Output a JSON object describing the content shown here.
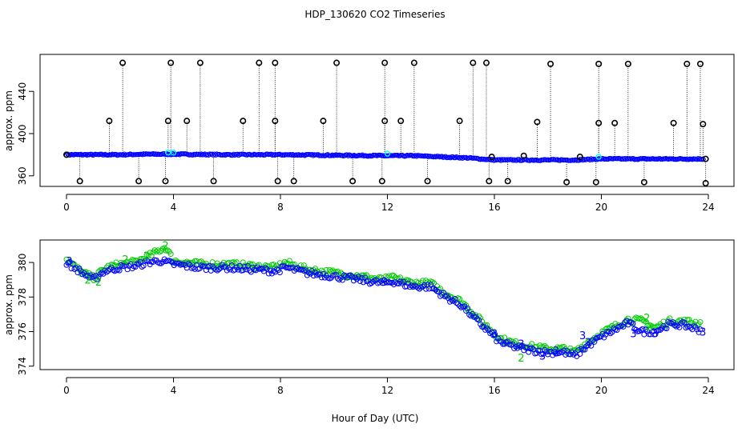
{
  "title": "HDP_130620  CO2 Timeseries",
  "chart_data": [
    {
      "type": "scatter",
      "panel": "top",
      "ylabel": "approx. ppm",
      "xlim": [
        0,
        24
      ],
      "ylim": [
        350,
        475
      ],
      "x_ticks": [
        "0",
        "4",
        "8",
        "12",
        "16",
        "20",
        "24"
      ],
      "y_ticks": [
        "360",
        "400",
        "440"
      ],
      "grid": false,
      "colors": {
        "flagged": "#000000",
        "baseline": "#0000ff",
        "spike": "#00ffff"
      },
      "baseline_series": [
        {
          "x": 0,
          "y": 380
        },
        {
          "x": 1,
          "y": 380
        },
        {
          "x": 2,
          "y": 380
        },
        {
          "x": 3,
          "y": 380.5
        },
        {
          "x": 4,
          "y": 380.5
        },
        {
          "x": 6,
          "y": 380
        },
        {
          "x": 8,
          "y": 380
        },
        {
          "x": 10,
          "y": 379.5
        },
        {
          "x": 12,
          "y": 379
        },
        {
          "x": 13,
          "y": 379
        },
        {
          "x": 14,
          "y": 378
        },
        {
          "x": 15,
          "y": 377
        },
        {
          "x": 16,
          "y": 375
        },
        {
          "x": 17,
          "y": 375
        },
        {
          "x": 18,
          "y": 375
        },
        {
          "x": 19,
          "y": 375
        },
        {
          "x": 20,
          "y": 376
        },
        {
          "x": 21,
          "y": 376
        },
        {
          "x": 22,
          "y": 376
        },
        {
          "x": 23,
          "y": 376
        },
        {
          "x": 23.8,
          "y": 376
        }
      ],
      "flagged_points": [
        {
          "x": 0.0,
          "y": 380
        },
        {
          "x": 0.5,
          "y": 355
        },
        {
          "x": 1.6,
          "y": 412
        },
        {
          "x": 2.1,
          "y": 467
        },
        {
          "x": 2.7,
          "y": 355
        },
        {
          "x": 3.7,
          "y": 355
        },
        {
          "x": 3.8,
          "y": 412
        },
        {
          "x": 3.9,
          "y": 467
        },
        {
          "x": 4.5,
          "y": 412
        },
        {
          "x": 5.0,
          "y": 467
        },
        {
          "x": 5.5,
          "y": 355
        },
        {
          "x": 6.6,
          "y": 412
        },
        {
          "x": 7.2,
          "y": 467
        },
        {
          "x": 7.8,
          "y": 467
        },
        {
          "x": 7.8,
          "y": 412
        },
        {
          "x": 7.9,
          "y": 355
        },
        {
          "x": 8.5,
          "y": 355
        },
        {
          "x": 9.6,
          "y": 412
        },
        {
          "x": 10.1,
          "y": 467
        },
        {
          "x": 10.7,
          "y": 355
        },
        {
          "x": 11.8,
          "y": 355
        },
        {
          "x": 11.9,
          "y": 412
        },
        {
          "x": 11.9,
          "y": 467
        },
        {
          "x": 12.5,
          "y": 412
        },
        {
          "x": 13.0,
          "y": 467
        },
        {
          "x": 13.5,
          "y": 355
        },
        {
          "x": 14.7,
          "y": 412
        },
        {
          "x": 15.2,
          "y": 467
        },
        {
          "x": 15.7,
          "y": 467
        },
        {
          "x": 15.8,
          "y": 355
        },
        {
          "x": 15.9,
          "y": 378
        },
        {
          "x": 16.5,
          "y": 355
        },
        {
          "x": 17.1,
          "y": 379
        },
        {
          "x": 17.6,
          "y": 411
        },
        {
          "x": 18.1,
          "y": 466
        },
        {
          "x": 18.7,
          "y": 354
        },
        {
          "x": 19.2,
          "y": 378
        },
        {
          "x": 19.8,
          "y": 354
        },
        {
          "x": 19.9,
          "y": 410
        },
        {
          "x": 19.9,
          "y": 466
        },
        {
          "x": 20.5,
          "y": 410
        },
        {
          "x": 21.0,
          "y": 466
        },
        {
          "x": 21.6,
          "y": 354
        },
        {
          "x": 22.7,
          "y": 410
        },
        {
          "x": 23.2,
          "y": 466
        },
        {
          "x": 23.7,
          "y": 466
        },
        {
          "x": 23.8,
          "y": 409
        },
        {
          "x": 23.9,
          "y": 353
        },
        {
          "x": 23.9,
          "y": 376
        }
      ],
      "spike_points": [
        {
          "x": 3.8,
          "y": 382
        },
        {
          "x": 4.0,
          "y": 382
        },
        {
          "x": 12.0,
          "y": 381
        },
        {
          "x": 19.9,
          "y": 378
        }
      ]
    },
    {
      "type": "scatter",
      "panel": "bottom",
      "xlabel": "Hour of Day (UTC)",
      "ylabel": "approx. ppm",
      "xlim": [
        0,
        24
      ],
      "ylim": [
        373.8,
        381.3
      ],
      "x_ticks": [
        "0",
        "4",
        "8",
        "12",
        "16",
        "20",
        "24"
      ],
      "y_ticks": [
        "374",
        "376",
        "378",
        "380"
      ],
      "grid": false,
      "colors": {
        "marker_blue": "#0000ff",
        "marker_green": "#00cc00"
      },
      "marker_labels": [
        "2",
        "3"
      ],
      "blue_series": [
        {
          "x": 0.0,
          "y": 380.0
        },
        {
          "x": 0.3,
          "y": 379.7
        },
        {
          "x": 0.6,
          "y": 379.4
        },
        {
          "x": 1.0,
          "y": 379.0
        },
        {
          "x": 1.4,
          "y": 379.5
        },
        {
          "x": 2.0,
          "y": 379.7
        },
        {
          "x": 2.6,
          "y": 379.8
        },
        {
          "x": 3.0,
          "y": 380.0
        },
        {
          "x": 3.5,
          "y": 380.1
        },
        {
          "x": 4.0,
          "y": 379.9
        },
        {
          "x": 5.0,
          "y": 379.7
        },
        {
          "x": 6.0,
          "y": 379.7
        },
        {
          "x": 7.0,
          "y": 379.6
        },
        {
          "x": 7.8,
          "y": 379.5
        },
        {
          "x": 8.2,
          "y": 379.7
        },
        {
          "x": 9.0,
          "y": 379.4
        },
        {
          "x": 10.0,
          "y": 379.2
        },
        {
          "x": 11.0,
          "y": 379.0
        },
        {
          "x": 11.8,
          "y": 378.8
        },
        {
          "x": 12.2,
          "y": 378.9
        },
        {
          "x": 13.0,
          "y": 378.6
        },
        {
          "x": 13.6,
          "y": 378.6
        },
        {
          "x": 14.2,
          "y": 378.0
        },
        {
          "x": 14.8,
          "y": 377.5
        },
        {
          "x": 15.3,
          "y": 376.7
        },
        {
          "x": 15.8,
          "y": 376.0
        },
        {
          "x": 16.2,
          "y": 375.4
        },
        {
          "x": 16.8,
          "y": 375.1
        },
        {
          "x": 17.5,
          "y": 374.9
        },
        {
          "x": 18.0,
          "y": 374.8
        },
        {
          "x": 18.6,
          "y": 374.8
        },
        {
          "x": 19.0,
          "y": 374.6
        },
        {
          "x": 19.5,
          "y": 375.2
        },
        {
          "x": 20.0,
          "y": 375.7
        },
        {
          "x": 20.5,
          "y": 376.1
        },
        {
          "x": 21.0,
          "y": 376.5
        },
        {
          "x": 21.5,
          "y": 376.0
        },
        {
          "x": 22.0,
          "y": 376.0
        },
        {
          "x": 22.5,
          "y": 376.4
        },
        {
          "x": 23.0,
          "y": 376.4
        },
        {
          "x": 23.7,
          "y": 376.1
        }
      ],
      "green_series": [
        {
          "x": 0.0,
          "y": 380.2
        },
        {
          "x": 0.5,
          "y": 379.5
        },
        {
          "x": 1.0,
          "y": 379.1
        },
        {
          "x": 1.5,
          "y": 379.7
        },
        {
          "x": 2.0,
          "y": 379.9
        },
        {
          "x": 2.5,
          "y": 380.0
        },
        {
          "x": 3.0,
          "y": 380.3
        },
        {
          "x": 3.7,
          "y": 380.9
        },
        {
          "x": 4.0,
          "y": 380.1
        },
        {
          "x": 5.0,
          "y": 379.9
        },
        {
          "x": 6.0,
          "y": 379.9
        },
        {
          "x": 7.0,
          "y": 379.8
        },
        {
          "x": 7.8,
          "y": 379.7
        },
        {
          "x": 8.2,
          "y": 380.0
        },
        {
          "x": 9.0,
          "y": 379.6
        },
        {
          "x": 10.0,
          "y": 379.4
        },
        {
          "x": 11.0,
          "y": 379.2
        },
        {
          "x": 11.8,
          "y": 379.0
        },
        {
          "x": 12.2,
          "y": 379.1
        },
        {
          "x": 13.0,
          "y": 378.8
        },
        {
          "x": 13.6,
          "y": 378.8
        },
        {
          "x": 14.2,
          "y": 378.2
        },
        {
          "x": 14.8,
          "y": 377.7
        },
        {
          "x": 15.3,
          "y": 376.9
        },
        {
          "x": 15.8,
          "y": 376.2
        },
        {
          "x": 16.2,
          "y": 375.6
        },
        {
          "x": 16.8,
          "y": 375.3
        },
        {
          "x": 17.5,
          "y": 375.1
        },
        {
          "x": 18.0,
          "y": 375.0
        },
        {
          "x": 18.6,
          "y": 375.0
        },
        {
          "x": 19.0,
          "y": 374.8
        },
        {
          "x": 19.5,
          "y": 375.4
        },
        {
          "x": 20.0,
          "y": 375.9
        },
        {
          "x": 20.5,
          "y": 376.3
        },
        {
          "x": 21.0,
          "y": 376.7
        },
        {
          "x": 21.6,
          "y": 376.6
        },
        {
          "x": 22.0,
          "y": 376.2
        },
        {
          "x": 22.5,
          "y": 376.6
        },
        {
          "x": 23.0,
          "y": 376.6
        },
        {
          "x": 23.7,
          "y": 376.5
        }
      ]
    }
  ]
}
